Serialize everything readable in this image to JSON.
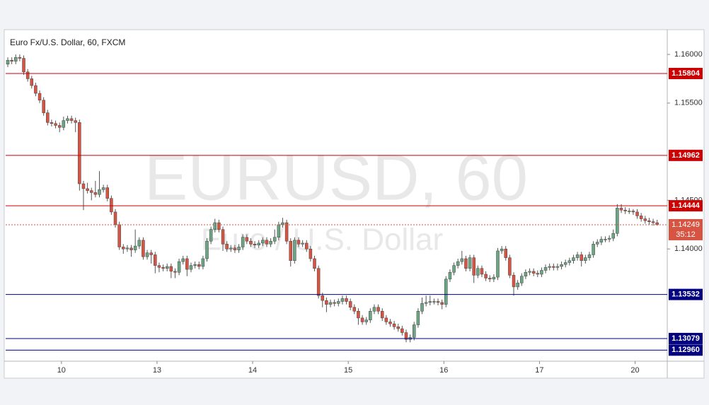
{
  "chart_data": {
    "type": "candlestick",
    "title": "Euro Fx/U.S. Dollar, 60, FXCM",
    "watermark": "EURUSD, 60",
    "watermark_subtitle": "Euro / U.S. Dollar",
    "up_color": "#6ba583",
    "down_color": "#d75442",
    "ylim": [
      1.12846,
      1.1624
    ],
    "yticks": [
      {
        "value": 1.16,
        "label": "1.16000"
      },
      {
        "value": 1.155,
        "label": "1.15500"
      },
      {
        "value": 1.145,
        "label": "1.14500"
      },
      {
        "value": 1.14,
        "label": "1.14000"
      }
    ],
    "categories": [
      null,
      null,
      null,
      null,
      null,
      null,
      null,
      null,
      null,
      null,
      null,
      null,
      null,
      null,
      "10",
      null,
      null,
      null,
      null,
      null,
      null,
      null,
      null,
      null,
      null,
      null,
      null,
      null,
      null,
      null,
      null,
      null,
      null,
      null,
      null,
      null,
      null,
      null,
      "13",
      null,
      null,
      null,
      null,
      null,
      null,
      null,
      null,
      null,
      null,
      null,
      null,
      null,
      null,
      null,
      null,
      null,
      null,
      null,
      null,
      null,
      null,
      null,
      "14",
      null,
      null,
      null,
      null,
      null,
      null,
      null,
      null,
      null,
      null,
      null,
      null,
      null,
      null,
      null,
      null,
      null,
      null,
      null,
      null,
      null,
      null,
      null,
      "15",
      null,
      null,
      null,
      null,
      null,
      null,
      null,
      null,
      null,
      null,
      null,
      null,
      null,
      null,
      null,
      null,
      null,
      null,
      null,
      null,
      null,
      null,
      null,
      "16",
      null,
      null,
      null,
      null,
      null,
      null,
      null,
      null,
      null,
      null,
      null,
      null,
      null,
      null,
      null,
      null,
      null,
      null,
      null,
      null,
      null,
      null,
      null,
      "17",
      null,
      null,
      null,
      null,
      null,
      null,
      null,
      null,
      null,
      null,
      null,
      null,
      null,
      null,
      null,
      null,
      null,
      null,
      null,
      null,
      null,
      null,
      null,
      "20",
      null,
      null,
      null,
      null,
      null
    ],
    "open": [
      1.159,
      1.1594,
      1.1593,
      1.1597,
      1.1596,
      1.1582,
      1.1575,
      1.1568,
      1.156,
      1.1553,
      1.154,
      1.153,
      1.1529,
      1.1527,
      1.1525,
      1.1532,
      1.1534,
      1.1532,
      1.153,
      1.1467,
      1.1462,
      1.146,
      1.1458,
      1.1456,
      1.1461,
      1.1463,
      1.1452,
      1.1438,
      1.1425,
      1.1402,
      1.14,
      1.1401,
      1.1399,
      1.1403,
      1.1409,
      1.1392,
      1.1396,
      1.1394,
      1.1383,
      1.1381,
      1.138,
      1.1382,
      1.1377,
      1.1376,
      1.1387,
      1.139,
      1.1379,
      1.1383,
      1.1384,
      1.1382,
      1.139,
      1.1408,
      1.142,
      1.1427,
      1.142,
      1.1405,
      1.14,
      1.1401,
      1.1399,
      1.1402,
      1.1412,
      1.1408,
      1.1405,
      1.1404,
      1.1406,
      1.1409,
      1.1405,
      1.1408,
      1.1412,
      1.1425,
      1.1427,
      1.1408,
      1.1388,
      1.1409,
      1.1405,
      1.1406,
      1.14,
      1.139,
      1.138,
      1.1352,
      1.1347,
      1.1343,
      1.1345,
      1.1344,
      1.1346,
      1.1349,
      1.1346,
      1.134,
      1.1336,
      1.1329,
      1.1325,
      1.1327,
      1.1336,
      1.134,
      1.1336,
      1.1329,
      1.1325,
      1.1323,
      1.132,
      1.1318,
      1.1314,
      1.1307,
      1.1309,
      1.1322,
      1.1336,
      1.1344,
      1.1345,
      1.1346,
      1.1346,
      1.1345,
      1.1343,
      1.1369,
      1.1376,
      1.1383,
      1.1387,
      1.139,
      1.138,
      1.1391,
      1.1373,
      1.138,
      1.1374,
      1.137,
      1.1369,
      1.1371,
      1.1398,
      1.14,
      1.1391,
      1.1373,
      1.1361,
      1.1365,
      1.1372,
      1.1376,
      1.1377,
      1.1375,
      1.1374,
      1.1378,
      1.1381,
      1.1382,
      1.1381,
      1.1382,
      1.1384,
      1.1386,
      1.1388,
      1.1391,
      1.1394,
      1.1388,
      1.1391,
      1.1394,
      1.1405,
      1.1407,
      1.141,
      1.141,
      1.1411,
      1.1416,
      1.1442,
      1.144,
      1.1439,
      1.1439,
      1.1438,
      1.1434,
      1.1431,
      1.1429,
      1.1428,
      1.1427
    ],
    "high": [
      1.1597,
      1.1597,
      1.16,
      1.16,
      1.1599,
      1.1585,
      1.1578,
      1.1571,
      1.1563,
      1.1556,
      1.1543,
      1.1533,
      1.1532,
      1.153,
      1.1536,
      1.1537,
      1.1537,
      1.1535,
      1.1533,
      1.147,
      1.1468,
      1.1463,
      1.147,
      1.148,
      1.1466,
      1.1466,
      1.1455,
      1.1441,
      1.1428,
      1.1405,
      1.1404,
      1.1404,
      1.142,
      1.1412,
      1.1412,
      1.1399,
      1.1399,
      1.1397,
      1.1386,
      1.1384,
      1.1385,
      1.1385,
      1.138,
      1.139,
      1.1393,
      1.1393,
      1.1386,
      1.1387,
      1.1387,
      1.1393,
      1.1411,
      1.1423,
      1.1431,
      1.143,
      1.1423,
      1.1408,
      1.1404,
      1.1404,
      1.1405,
      1.1415,
      1.1415,
      1.1411,
      1.1408,
      1.1409,
      1.1412,
      1.1412,
      1.1411,
      1.142,
      1.1428,
      1.1432,
      1.143,
      1.1411,
      1.1412,
      1.1412,
      1.1409,
      1.1409,
      1.1403,
      1.1393,
      1.1383,
      1.1355,
      1.135,
      1.1348,
      1.1348,
      1.1349,
      1.1352,
      1.1352,
      1.1349,
      1.1343,
      1.1339,
      1.1332,
      1.133,
      1.1339,
      1.1343,
      1.1343,
      1.1339,
      1.1332,
      1.1328,
      1.1326,
      1.1323,
      1.1321,
      1.1317,
      1.1312,
      1.1325,
      1.1339,
      1.135,
      1.1352,
      1.1352,
      1.1349,
      1.1349,
      1.1348,
      1.1372,
      1.1379,
      1.1386,
      1.139,
      1.1398,
      1.1393,
      1.1394,
      1.1394,
      1.1383,
      1.1383,
      1.1377,
      1.1373,
      1.1374,
      1.1401,
      1.1403,
      1.1403,
      1.1394,
      1.1376,
      1.1368,
      1.1375,
      1.1379,
      1.138,
      1.138,
      1.1378,
      1.1381,
      1.1384,
      1.1385,
      1.1385,
      1.1385,
      1.1387,
      1.1389,
      1.1391,
      1.1394,
      1.1397,
      1.1397,
      1.1394,
      1.1397,
      1.1408,
      1.141,
      1.1413,
      1.1413,
      1.1414,
      1.142,
      1.1446,
      1.1446,
      1.1443,
      1.1442,
      1.1441,
      1.1441,
      1.1437,
      1.1434,
      1.1432,
      1.1431,
      1.143
    ],
    "low": [
      1.1587,
      1.159,
      1.159,
      1.1593,
      1.1579,
      1.1572,
      1.1565,
      1.1557,
      1.155,
      1.1537,
      1.1527,
      1.1526,
      1.1524,
      1.152,
      1.1522,
      1.1529,
      1.1529,
      1.152,
      1.146,
      1.144,
      1.1457,
      1.145,
      1.1453,
      1.1453,
      1.1458,
      1.1449,
      1.1435,
      1.1422,
      1.1399,
      1.1395,
      1.1397,
      1.1392,
      1.1396,
      1.14,
      1.1389,
      1.1389,
      1.1385,
      1.1375,
      1.1376,
      1.1377,
      1.1377,
      1.137,
      1.137,
      1.1373,
      1.1384,
      1.1372,
      1.1376,
      1.138,
      1.1379,
      1.1379,
      1.1387,
      1.1405,
      1.1417,
      1.1417,
      1.1398,
      1.1397,
      1.1397,
      1.1396,
      1.1396,
      1.1399,
      1.1405,
      1.1402,
      1.1401,
      1.1401,
      1.1403,
      1.1402,
      1.1402,
      1.1405,
      1.1409,
      1.1422,
      1.1405,
      1.1382,
      1.1385,
      1.1402,
      1.1402,
      1.1397,
      1.1387,
      1.1377,
      1.1349,
      1.134,
      1.1335,
      1.134,
      1.1341,
      1.1341,
      1.1343,
      1.1343,
      1.1337,
      1.1333,
      1.1322,
      1.1322,
      1.1322,
      1.1324,
      1.1333,
      1.1333,
      1.1326,
      1.1322,
      1.132,
      1.1317,
      1.1315,
      1.1311,
      1.1304,
      1.1304,
      1.1306,
      1.1319,
      1.1333,
      1.1341,
      1.1342,
      1.1343,
      1.1342,
      1.1338,
      1.134,
      1.1366,
      1.1373,
      1.138,
      1.1384,
      1.1377,
      1.1377,
      1.1365,
      1.137,
      1.1371,
      1.1367,
      1.1366,
      1.1366,
      1.1368,
      1.1395,
      1.1388,
      1.137,
      1.1352,
      1.1358,
      1.1362,
      1.1369,
      1.1373,
      1.1372,
      1.1371,
      1.1371,
      1.1375,
      1.1378,
      1.1378,
      1.1378,
      1.1379,
      1.1381,
      1.1383,
      1.1385,
      1.1388,
      1.1382,
      1.1385,
      1.1388,
      1.1391,
      1.1402,
      1.1404,
      1.1407,
      1.1407,
      1.1408,
      1.1413,
      1.1437,
      1.1436,
      1.1436,
      1.1435,
      1.1431,
      1.1428,
      1.1426,
      1.1425,
      1.1424,
      1.1424
    ],
    "close": [
      1.1594,
      1.1593,
      1.1597,
      1.1596,
      1.1582,
      1.1575,
      1.1568,
      1.156,
      1.1553,
      1.154,
      1.153,
      1.1529,
      1.1527,
      1.1525,
      1.1532,
      1.1534,
      1.1532,
      1.153,
      1.1467,
      1.1462,
      1.146,
      1.1458,
      1.1456,
      1.1461,
      1.1463,
      1.1452,
      1.1438,
      1.1425,
      1.1402,
      1.14,
      1.1401,
      1.1399,
      1.1403,
      1.1409,
      1.1392,
      1.1396,
      1.1394,
      1.1383,
      1.1381,
      1.138,
      1.1382,
      1.1377,
      1.1376,
      1.1387,
      1.139,
      1.1379,
      1.1383,
      1.1384,
      1.1382,
      1.139,
      1.1408,
      1.142,
      1.1427,
      1.142,
      1.1405,
      1.14,
      1.1401,
      1.1399,
      1.1402,
      1.1412,
      1.1408,
      1.1405,
      1.1404,
      1.1406,
      1.1409,
      1.1405,
      1.1408,
      1.1412,
      1.1425,
      1.1427,
      1.1408,
      1.1388,
      1.1409,
      1.1405,
      1.1406,
      1.14,
      1.139,
      1.138,
      1.1352,
      1.1347,
      1.1343,
      1.1345,
      1.1344,
      1.1346,
      1.1349,
      1.1346,
      1.134,
      1.1336,
      1.1329,
      1.1325,
      1.1327,
      1.1336,
      1.134,
      1.1336,
      1.1329,
      1.1325,
      1.1323,
      1.132,
      1.1318,
      1.1314,
      1.1307,
      1.1309,
      1.1322,
      1.1336,
      1.1344,
      1.1345,
      1.1346,
      1.1346,
      1.1345,
      1.1343,
      1.1369,
      1.1376,
      1.1383,
      1.1387,
      1.139,
      1.138,
      1.1391,
      1.1373,
      1.138,
      1.1374,
      1.137,
      1.1369,
      1.1371,
      1.1398,
      1.14,
      1.1391,
      1.1373,
      1.1361,
      1.1365,
      1.1372,
      1.1376,
      1.1377,
      1.1375,
      1.1374,
      1.1378,
      1.1381,
      1.1382,
      1.1381,
      1.1382,
      1.1384,
      1.1386,
      1.1388,
      1.1391,
      1.1394,
      1.1388,
      1.1391,
      1.1394,
      1.1405,
      1.1407,
      1.141,
      1.141,
      1.1411,
      1.1416,
      1.1442,
      1.144,
      1.1439,
      1.1439,
      1.1438,
      1.1434,
      1.1431,
      1.1429,
      1.1428,
      1.1427,
      1.14249
    ],
    "levels": [
      {
        "value": 1.15804,
        "label": "1.15804",
        "color": "#cc0000"
      },
      {
        "value": 1.14962,
        "label": "1.14962",
        "color": "#cc0000"
      },
      {
        "value": 1.14444,
        "label": "1.14444",
        "color": "#cc0000"
      },
      {
        "value": 1.13532,
        "label": "1.13532",
        "color": "#000080"
      },
      {
        "value": 1.13079,
        "label": "1.13079",
        "color": "#000080"
      },
      {
        "value": 1.1296,
        "label": "1.12960",
        "color": "#000080"
      }
    ],
    "last_price": {
      "value": 1.14249,
      "label": "1.14249",
      "color": "#d75442"
    },
    "countdown": "35:12"
  }
}
